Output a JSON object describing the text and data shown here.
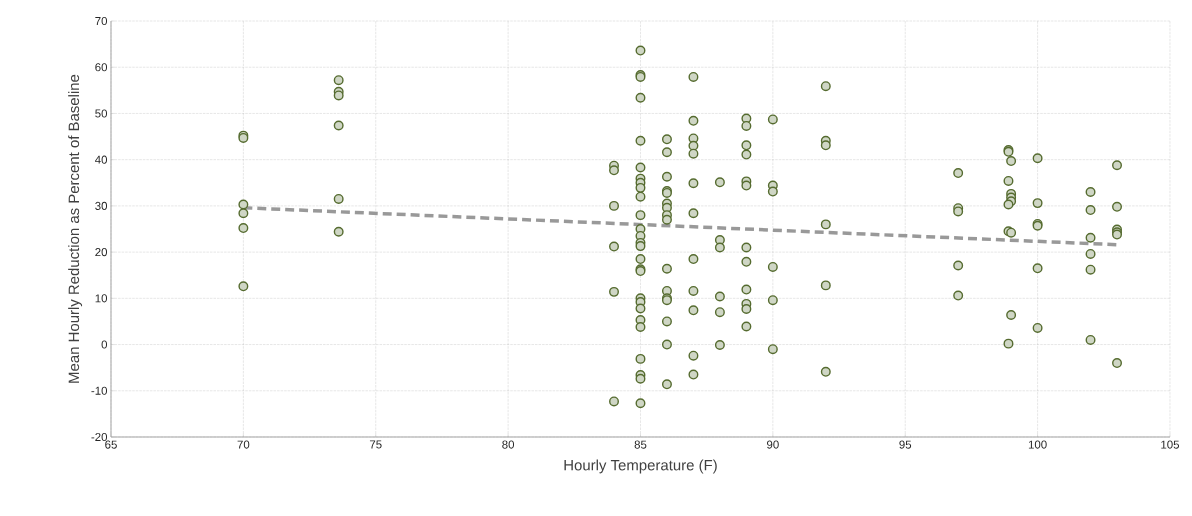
{
  "chart_data": {
    "type": "scatter",
    "xlabel": "Hourly Temperature (F)",
    "ylabel": "Mean Hourly Reduction as Percent of Baseline",
    "xlim": [
      65,
      105
    ],
    "ylim": [
      -20,
      70
    ],
    "xticks": [
      65,
      70,
      75,
      80,
      85,
      90,
      95,
      100,
      105
    ],
    "yticks": [
      -20,
      -10,
      0,
      10,
      20,
      30,
      40,
      50,
      60,
      70
    ],
    "grid": true,
    "marker": "circle",
    "series": [
      {
        "color": "#556b2f",
        "x": [
          70,
          70,
          70,
          70,
          70,
          70,
          73.6,
          73.6,
          73.6,
          73.6,
          73.6,
          73.6,
          84,
          84,
          84,
          84,
          84,
          84,
          85,
          85,
          85,
          85,
          85,
          85,
          85,
          85,
          85,
          85,
          85,
          85,
          85,
          85,
          85,
          85,
          85,
          85,
          85,
          85,
          85,
          85,
          85,
          85,
          85,
          85,
          85,
          86,
          86,
          86,
          86,
          86,
          86,
          86,
          86,
          86,
          86,
          86,
          86,
          86,
          86,
          86,
          86,
          87,
          87,
          87,
          87,
          87,
          87,
          87,
          87,
          87,
          87,
          87,
          87,
          88,
          88,
          88,
          88,
          88,
          88,
          89,
          89,
          89,
          89,
          89,
          89,
          89,
          89,
          89,
          89,
          89,
          89,
          90,
          90,
          90,
          90,
          90,
          90,
          92,
          92,
          92,
          92,
          92,
          92,
          97,
          97,
          97,
          97,
          97,
          98.9,
          98.9,
          99,
          98.9,
          99,
          99,
          99,
          98.9,
          98.9,
          99,
          99,
          98.9,
          100,
          100,
          100,
          100,
          100,
          100,
          102,
          102,
          102,
          102,
          102,
          102,
          103,
          103,
          103,
          103,
          103,
          103
        ],
        "values": [
          45.2,
          44.7,
          30.3,
          28.4,
          25.2,
          12.6,
          57.2,
          54.7,
          53.9,
          47.4,
          31.5,
          24.4,
          38.7,
          37.7,
          30.0,
          21.2,
          11.4,
          -12.3,
          63.6,
          58.3,
          57.9,
          53.4,
          44.1,
          38.3,
          35.9,
          35.0,
          33.9,
          32.0,
          28.0,
          25.0,
          23.5,
          22.0,
          21.3,
          18.5,
          16.3,
          15.9,
          10.0,
          9.2,
          7.8,
          5.3,
          3.8,
          -3.1,
          -6.6,
          -7.4,
          -12.7,
          44.4,
          41.6,
          36.3,
          33.2,
          32.8,
          30.5,
          29.6,
          28.0,
          27.0,
          16.4,
          11.6,
          10.0,
          9.6,
          5.0,
          0.0,
          -8.6,
          57.9,
          48.4,
          44.6,
          43.0,
          41.3,
          34.9,
          28.4,
          18.5,
          11.6,
          7.4,
          -2.4,
          -6.5,
          35.1,
          22.6,
          21.0,
          10.4,
          7.0,
          -0.1,
          48.9,
          47.3,
          43.1,
          41.1,
          35.3,
          34.4,
          21.0,
          17.9,
          11.9,
          8.8,
          7.7,
          3.9,
          48.7,
          34.4,
          33.1,
          16.8,
          9.6,
          -1.0,
          55.9,
          44.1,
          43.1,
          26.0,
          12.8,
          -5.9,
          37.1,
          29.5,
          28.8,
          17.1,
          10.6,
          42.1,
          41.7,
          39.7,
          35.4,
          32.6,
          31.8,
          31.0,
          30.3,
          24.5,
          24.2,
          6.4,
          0.2,
          40.3,
          30.6,
          26.1,
          25.7,
          16.5,
          3.6,
          33.0,
          29.1,
          23.1,
          19.6,
          16.2,
          1.0,
          38.8,
          29.8,
          24.9,
          24.3,
          23.8,
          -4.0
        ]
      },
      {
        "type": "line",
        "color": "#999999",
        "line_style": "dashed",
        "marker": "none",
        "x": [
          70,
          103
        ],
        "values": [
          29.6,
          21.6
        ]
      }
    ]
  }
}
